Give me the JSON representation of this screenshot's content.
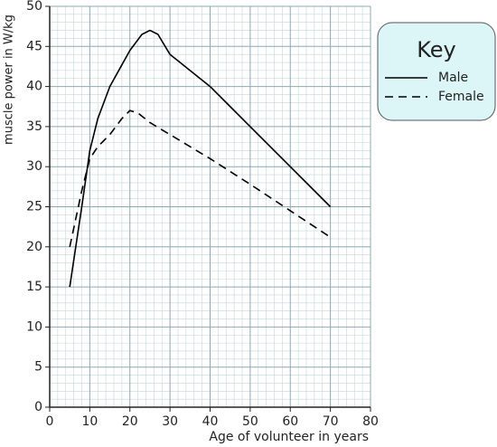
{
  "chart_data": {
    "type": "line",
    "xlabel": "Age of volunteer in years",
    "ylabel": "muscle power in W/kg",
    "legend_title": "Key",
    "series": [
      {
        "name": "Male",
        "color": "#000000",
        "style": "solid",
        "x": [
          5,
          8,
          10,
          12,
          15,
          20,
          23,
          25,
          27,
          30,
          40,
          50,
          60,
          70
        ],
        "values": [
          15,
          25,
          32,
          36,
          40,
          44.5,
          46.5,
          47,
          46.5,
          44,
          40,
          35,
          30,
          25
        ]
      },
      {
        "name": "Female",
        "color": "#000000",
        "style": "dashed",
        "x": [
          5,
          8,
          10,
          12,
          15,
          18,
          20,
          22,
          25,
          30,
          40,
          50,
          60,
          70
        ],
        "values": [
          20,
          27,
          31,
          32.5,
          34,
          36,
          37,
          36.7,
          35.5,
          34,
          31,
          27.8,
          24.5,
          21.2
        ]
      }
    ],
    "xlim": [
      0,
      80
    ],
    "xticks": [
      0,
      10,
      20,
      30,
      40,
      50,
      60,
      70,
      80
    ],
    "ylim": [
      0,
      50
    ],
    "yticks": [
      0,
      5,
      10,
      15,
      20,
      25,
      30,
      35,
      40,
      45,
      50
    ],
    "grid": true,
    "minor_divisions": 5
  }
}
